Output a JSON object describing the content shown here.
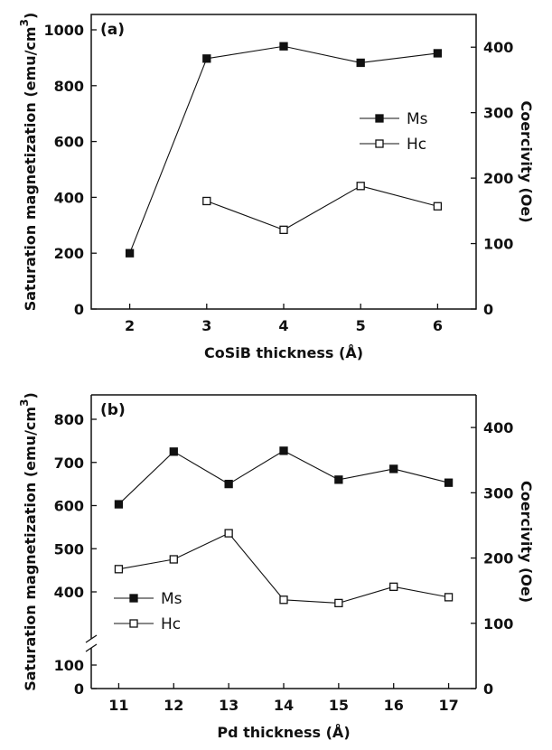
{
  "chart_data": [
    {
      "type": "line",
      "panel_label": "(a)",
      "x": [
        2,
        3,
        4,
        5,
        6
      ],
      "xlabel": "CoSiB thickness (Å)",
      "xticks": [
        "2",
        "3",
        "4",
        "5",
        "6"
      ],
      "xlim": [
        1.5,
        6.5
      ],
      "ylabel_left": "Saturation magnetization (emu/cm",
      "ylabel_left_sup": "3",
      "ylabel_left_tail": ")",
      "ylabel_right": "Coercivity (Oe)",
      "yticks_left": [
        "0",
        "200",
        "400",
        "600",
        "800",
        "1000"
      ],
      "yticks_right": [
        "0",
        "100",
        "200",
        "300",
        "400"
      ],
      "ylim_left": [
        0,
        1000
      ],
      "ylim_right": [
        0,
        450
      ],
      "legend_position": "upper-right",
      "series": [
        {
          "name": "Ms",
          "axis": "left",
          "marker": "filled-square",
          "values": [
            200,
            897,
            941,
            882,
            916
          ]
        },
        {
          "name": "Hc",
          "axis": "right",
          "marker": "open-square",
          "values": [
            null,
            165,
            121,
            188,
            157
          ]
        }
      ]
    },
    {
      "type": "line",
      "panel_label": "(b)",
      "x": [
        11,
        12,
        13,
        14,
        15,
        16,
        17
      ],
      "xlabel": "Pd thickness (Å)",
      "xticks": [
        "11",
        "12",
        "13",
        "14",
        "15",
        "16",
        "17"
      ],
      "xlim": [
        10.5,
        17.5
      ],
      "ylabel_left": "Saturation magnetization (emu/cm",
      "ylabel_left_sup": "3",
      "ylabel_left_tail": ")",
      "ylabel_right": "Coercivity (Oe)",
      "yticks_left": [
        "0",
        "100",
        "400",
        "500",
        "600",
        "700",
        "800"
      ],
      "yticks_right": [
        "0",
        "100",
        "200",
        "300",
        "400"
      ],
      "ylim_left_broken": [
        [
          0,
          100
        ],
        [
          350,
          850
        ]
      ],
      "ylim_right": [
        0,
        450
      ],
      "legend_position": "lower-left",
      "series": [
        {
          "name": "Ms",
          "axis": "left",
          "marker": "filled-square",
          "values": [
            603,
            725,
            650,
            727,
            660,
            685,
            653
          ]
        },
        {
          "name": "Hc",
          "axis": "right",
          "marker": "open-square",
          "values": [
            183,
            198,
            238,
            136,
            131,
            156,
            140
          ]
        }
      ]
    }
  ]
}
